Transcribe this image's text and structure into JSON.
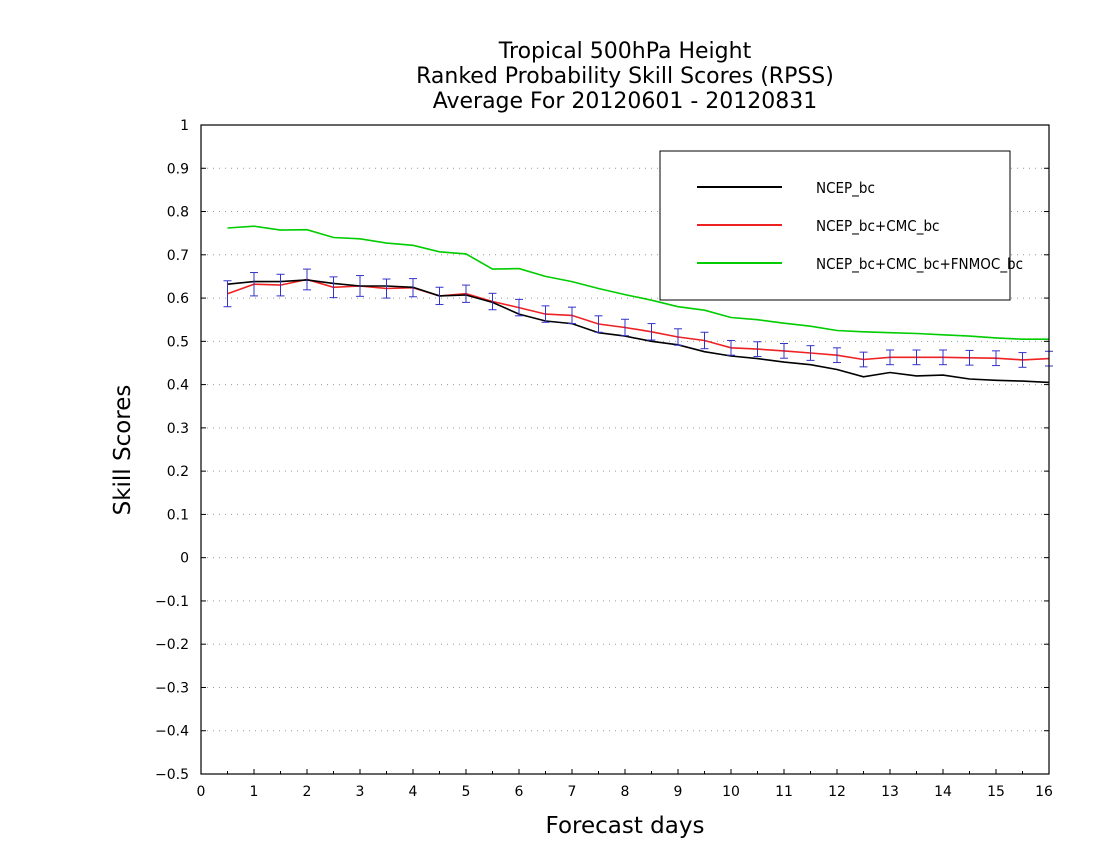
{
  "chart_data": {
    "type": "line",
    "title": [
      "Tropical 500hPa Height",
      "Ranked Probability Skill Scores (RPSS)",
      "Average For 20120601 - 20120831"
    ],
    "xlabel": "Forecast days",
    "ylabel": "Skill Scores",
    "xlim": [
      0,
      16
    ],
    "ylim": [
      -0.5,
      1
    ],
    "x_ticks": [
      0,
      1,
      2,
      3,
      4,
      5,
      6,
      7,
      8,
      9,
      10,
      11,
      12,
      13,
      14,
      15,
      16
    ],
    "y_ticks": [
      -0.5,
      -0.4,
      -0.3,
      -0.2,
      -0.1,
      0,
      0.1,
      0.2,
      0.3,
      0.4,
      0.5,
      0.6,
      0.7,
      0.8,
      0.9,
      1
    ],
    "x_tick_labels": [
      "0",
      "1",
      "2",
      "3",
      "4",
      "5",
      "6",
      "7",
      "8",
      "9",
      "10",
      "11",
      "12",
      "13",
      "14",
      "15",
      "16"
    ],
    "y_tick_labels": [
      "−0.5",
      "−0.4",
      "−0.3",
      "−0.2",
      "−0.1",
      "0",
      "0.1",
      "0.2",
      "0.3",
      "0.4",
      "0.5",
      "0.6",
      "0.7",
      "0.8",
      "0.9",
      "1"
    ],
    "grid": "horizontal dotted",
    "legend_position": "top-right",
    "x": [
      0.5,
      1,
      1.5,
      2,
      2.5,
      3,
      3.5,
      4,
      4.5,
      5,
      5.5,
      6,
      6.5,
      7,
      7.5,
      8,
      8.5,
      9,
      9.5,
      10,
      10.5,
      11,
      11.5,
      12,
      12.5,
      13,
      13.5,
      14,
      14.5,
      15,
      15.5,
      16
    ],
    "series": [
      {
        "name": "NCEP_bc",
        "color": "#000000",
        "values": [
          0.632,
          0.638,
          0.638,
          0.642,
          0.634,
          0.628,
          0.628,
          0.625,
          0.605,
          0.607,
          0.59,
          0.563,
          0.547,
          0.541,
          0.52,
          0.512,
          0.5,
          0.492,
          0.476,
          0.466,
          0.46,
          0.452,
          0.446,
          0.435,
          0.418,
          0.428,
          0.42,
          0.422,
          0.413,
          0.41,
          0.408,
          0.405
        ]
      },
      {
        "name": "NCEP_bc+CMC_bc",
        "color": "#ee2222",
        "values": [
          0.61,
          0.632,
          0.63,
          0.643,
          0.625,
          0.628,
          0.622,
          0.624,
          0.605,
          0.61,
          0.592,
          0.578,
          0.563,
          0.56,
          0.54,
          0.532,
          0.522,
          0.51,
          0.502,
          0.485,
          0.482,
          0.478,
          0.473,
          0.468,
          0.458,
          0.463,
          0.463,
          0.463,
          0.462,
          0.461,
          0.457,
          0.46
        ]
      },
      {
        "name": "NCEP_bc+CMC_bc+FNMOC_bc",
        "color": "#00cc00",
        "values": [
          0.762,
          0.766,
          0.757,
          0.758,
          0.74,
          0.737,
          0.727,
          0.722,
          0.707,
          0.702,
          0.667,
          0.668,
          0.65,
          0.638,
          0.622,
          0.608,
          0.595,
          0.58,
          0.572,
          0.555,
          0.55,
          0.542,
          0.535,
          0.525,
          0.522,
          0.52,
          0.518,
          0.515,
          0.512,
          0.508,
          0.505,
          0.505
        ]
      }
    ],
    "error_bars": {
      "series": "NCEP_bc+CMC_bc",
      "color": "#3333cc",
      "half_width": [
        0.03,
        0.027,
        0.025,
        0.024,
        0.024,
        0.024,
        0.022,
        0.021,
        0.02,
        0.02,
        0.019,
        0.019,
        0.019,
        0.019,
        0.019,
        0.019,
        0.019,
        0.019,
        0.019,
        0.017,
        0.017,
        0.017,
        0.017,
        0.017,
        0.017,
        0.017,
        0.017,
        0.017,
        0.017,
        0.017,
        0.017,
        0.017
      ]
    }
  }
}
